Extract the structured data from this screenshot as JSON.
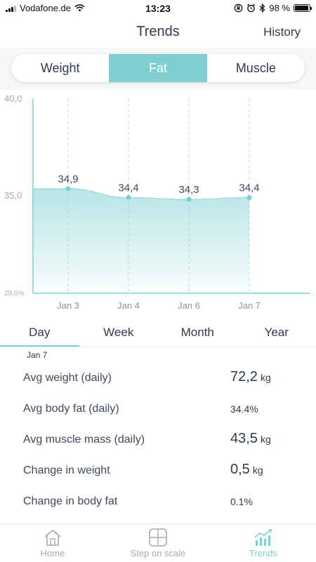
{
  "status_bar": {
    "carrier": "Vodafone.de",
    "time": "13:23",
    "battery": "98 %"
  },
  "nav": {
    "title": "Trends",
    "history_label": "History"
  },
  "metric_tabs": [
    {
      "label": "Weight",
      "active": false
    },
    {
      "label": "Fat",
      "active": true
    },
    {
      "label": "Muscle",
      "active": false
    }
  ],
  "chart_data": {
    "type": "area",
    "categories": [
      "Jan 3",
      "Jan 4",
      "Jan 6",
      "Jan 7"
    ],
    "values": [
      34.9,
      34.4,
      34.3,
      34.4
    ],
    "data_labels": [
      "34,9",
      "34,4",
      "34,3",
      "34,4"
    ],
    "y_tick_labels": [
      "40,0",
      "35,0",
      "29.0%"
    ],
    "ylim": [
      29.0,
      40.0
    ],
    "title": "",
    "xlabel": "",
    "ylabel": "",
    "grid": "vertical-dashed",
    "color": "#7ecfd1"
  },
  "period_tabs": [
    {
      "label": "Day",
      "active": true
    },
    {
      "label": "Week",
      "active": false
    },
    {
      "label": "Month",
      "active": false
    },
    {
      "label": "Year",
      "active": false
    }
  ],
  "selected_date": "Jan 7",
  "stats": {
    "avg_weight": {
      "label": "Avg weight (daily)",
      "value": "72,2",
      "unit": "kg"
    },
    "avg_body_fat": {
      "label": "Avg body fat (daily)",
      "value": "34.4%"
    },
    "avg_muscle": {
      "label": "Avg muscle mass (daily)",
      "value": "43,5",
      "unit": "kg"
    },
    "change_weight": {
      "label": "Change in weight",
      "value": "0,5",
      "unit": "kg"
    },
    "change_fat": {
      "label": "Change in body fat",
      "value": "0.1%"
    }
  },
  "tab_bar": [
    {
      "label": "Home",
      "icon": "home-icon",
      "active": false
    },
    {
      "label": "Step on scale",
      "icon": "scale-icon",
      "active": false
    },
    {
      "label": "Trends",
      "icon": "trends-icon",
      "active": true
    }
  ]
}
